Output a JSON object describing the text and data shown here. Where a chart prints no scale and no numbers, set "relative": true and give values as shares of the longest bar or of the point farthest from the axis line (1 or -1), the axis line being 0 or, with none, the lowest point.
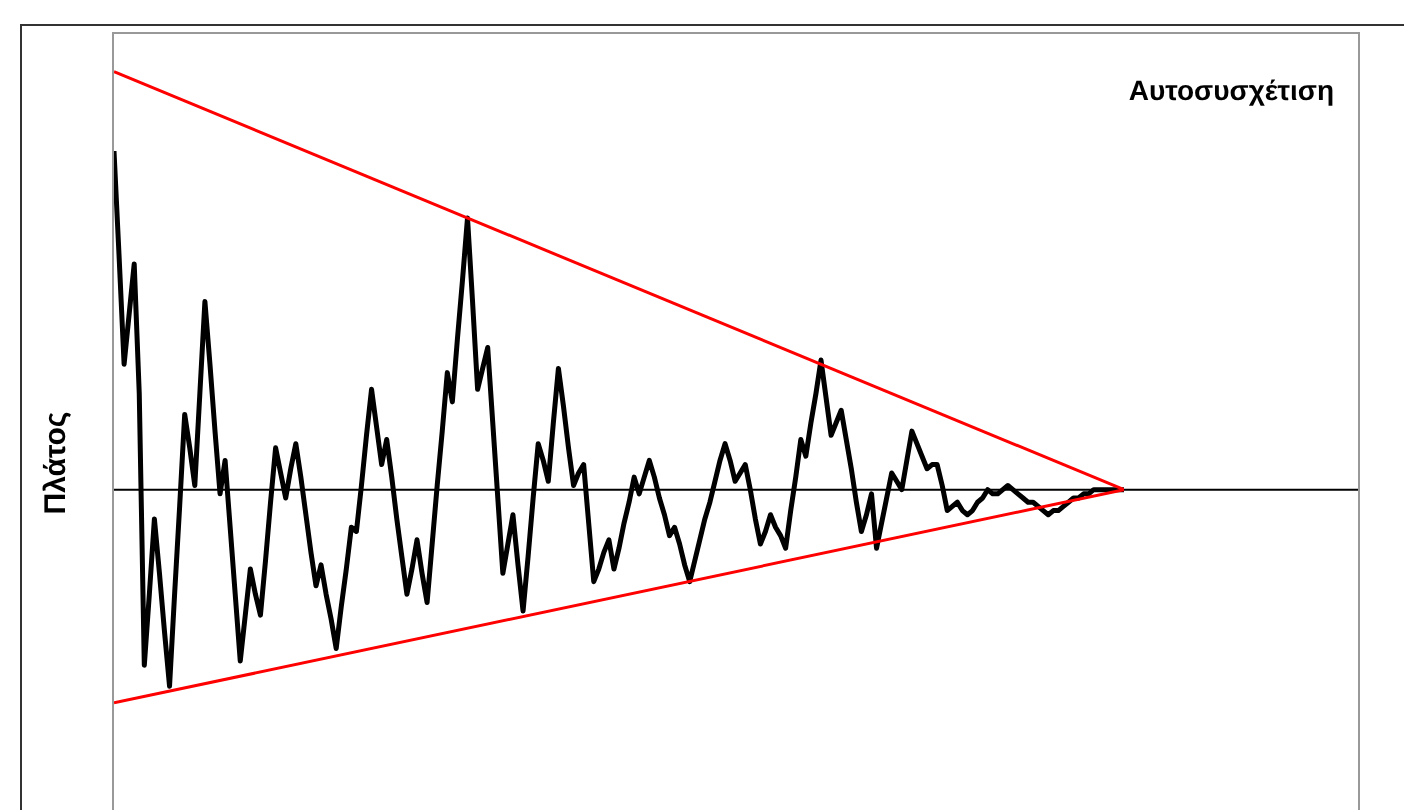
{
  "chart_data": {
    "type": "line",
    "title": "Αυτοσυσχέτιση",
    "ylabel": "Πλάτος",
    "relative": true,
    "marker": "none",
    "categories": [
      null,
      null,
      null,
      null,
      null,
      null,
      null,
      null,
      null,
      null,
      null,
      null,
      null,
      null,
      null,
      null,
      null,
      null,
      null,
      null,
      null,
      null,
      null,
      null,
      null,
      null,
      null,
      null,
      null,
      null,
      null,
      null,
      null,
      null,
      null,
      null,
      null,
      null,
      null,
      null,
      null,
      null,
      null,
      null,
      null,
      null,
      null,
      null,
      null,
      null,
      null,
      null,
      null,
      null,
      null,
      null,
      null,
      null,
      null,
      null,
      null,
      null,
      null,
      null,
      null,
      null,
      null,
      null,
      null,
      null,
      null,
      null,
      null,
      null,
      null,
      null,
      null,
      null,
      null,
      null,
      null,
      null,
      null,
      null,
      null,
      null,
      null,
      null,
      null,
      null,
      null,
      null,
      null,
      null,
      null,
      null,
      null,
      null,
      null,
      null,
      null,
      null,
      null,
      null,
      null,
      null,
      null,
      null,
      null,
      null,
      null,
      null,
      null,
      null,
      null,
      null,
      null,
      null,
      null,
      null,
      null,
      null,
      null,
      null,
      null,
      null,
      null,
      null,
      null,
      null,
      null,
      null,
      null,
      null,
      null,
      null,
      null,
      null,
      null,
      null,
      null,
      null,
      null,
      null,
      null,
      null,
      null,
      null,
      null,
      null,
      null,
      null,
      null,
      null,
      null,
      null,
      null,
      null,
      null,
      null,
      null,
      null,
      null,
      null,
      null,
      null,
      null,
      null,
      null,
      null,
      null,
      null,
      null,
      null,
      null,
      null,
      null,
      null,
      null,
      null,
      null,
      null,
      null,
      null,
      null,
      null,
      null,
      null,
      null,
      null,
      null,
      null,
      null,
      null,
      null,
      null,
      null,
      null,
      null,
      null,
      null
    ],
    "series": [
      {
        "color": "#000000",
        "values": [
          0.81,
          0.56,
          0.3,
          0.42,
          0.54,
          0.23,
          -0.42,
          -0.25,
          -0.07,
          -0.2,
          -0.34,
          -0.47,
          -0.25,
          -0.04,
          0.18,
          0.1,
          0.01,
          0.23,
          0.45,
          0.3,
          0.14,
          -0.01,
          0.07,
          -0.09,
          -0.25,
          -0.41,
          -0.3,
          -0.19,
          -0.25,
          -0.3,
          -0.17,
          -0.03,
          0.1,
          0.04,
          -0.02,
          0.05,
          0.11,
          0.03,
          -0.06,
          -0.15,
          -0.23,
          -0.18,
          -0.25,
          -0.31,
          -0.38,
          -0.28,
          -0.19,
          -0.09,
          -0.1,
          0.01,
          0.13,
          0.24,
          0.15,
          0.06,
          0.12,
          0.03,
          -0.07,
          -0.16,
          -0.25,
          -0.19,
          -0.12,
          -0.2,
          -0.27,
          -0.13,
          0.01,
          0.14,
          0.28,
          0.21,
          0.36,
          0.5,
          0.65,
          0.45,
          0.24,
          0.29,
          0.34,
          0.16,
          -0.02,
          -0.2,
          -0.13,
          -0.06,
          -0.18,
          -0.29,
          -0.16,
          -0.02,
          0.11,
          0.07,
          0.02,
          0.16,
          0.29,
          0.2,
          0.1,
          0.01,
          0.04,
          0.06,
          -0.08,
          -0.22,
          -0.19,
          -0.15,
          -0.12,
          -0.19,
          -0.14,
          -0.08,
          -0.03,
          0.03,
          -0.01,
          0.03,
          0.07,
          0.03,
          -0.02,
          -0.06,
          -0.11,
          -0.09,
          -0.13,
          -0.18,
          -0.22,
          -0.17,
          -0.12,
          -0.07,
          -0.03,
          0.02,
          0.07,
          0.11,
          0.07,
          0.02,
          0.04,
          0.06,
          0,
          -0.07,
          -0.13,
          -0.1,
          -0.06,
          -0.09,
          -0.11,
          -0.14,
          -0.05,
          0.03,
          0.12,
          0.08,
          0.16,
          0.23,
          0.31,
          0.22,
          0.13,
          0.16,
          0.19,
          0.12,
          0.05,
          -0.03,
          -0.1,
          -0.06,
          -0.01,
          -0.14,
          -0.08,
          -0.02,
          0.04,
          0.02,
          0,
          0.07,
          0.14,
          0.11,
          0.08,
          0.05,
          0.06,
          0.06,
          0.01,
          -0.05,
          -0.04,
          -0.03,
          -0.05,
          -0.06,
          -0.05,
          -0.03,
          -0.02,
          0,
          -0.01,
          -0.01,
          0,
          0.01,
          0,
          -0.01,
          -0.02,
          -0.03,
          -0.03,
          -0.04,
          -0.05,
          -0.06,
          -0.05,
          -0.05,
          -0.04,
          -0.03,
          -0.02,
          -0.02,
          -0.01,
          -0.01,
          0,
          0,
          0,
          0,
          0,
          0,
          0
        ]
      },
      {
        "color": "#ff0000",
        "values": [
          1,
          null,
          null,
          null,
          null,
          null,
          null,
          null,
          null,
          null,
          null,
          null,
          null,
          null,
          null,
          null,
          null,
          null,
          null,
          null,
          null,
          null,
          null,
          null,
          null,
          null,
          null,
          null,
          null,
          null,
          null,
          null,
          null,
          null,
          null,
          null,
          null,
          null,
          null,
          null,
          null,
          null,
          null,
          null,
          null,
          null,
          null,
          null,
          null,
          null,
          null,
          null,
          null,
          null,
          null,
          null,
          null,
          null,
          null,
          null,
          null,
          null,
          null,
          null,
          null,
          null,
          null,
          null,
          null,
          null,
          null,
          null,
          null,
          null,
          null,
          null,
          null,
          null,
          null,
          null,
          null,
          null,
          null,
          null,
          null,
          null,
          null,
          null,
          null,
          null,
          null,
          null,
          null,
          null,
          null,
          null,
          null,
          null,
          null,
          null,
          null,
          null,
          null,
          null,
          null,
          null,
          null,
          null,
          null,
          null,
          null,
          null,
          null,
          null,
          null,
          null,
          null,
          null,
          null,
          null,
          null,
          null,
          null,
          null,
          null,
          null,
          null,
          null,
          null,
          null,
          null,
          null,
          null,
          null,
          null,
          null,
          null,
          null,
          null,
          null,
          null,
          null,
          null,
          null,
          null,
          null,
          null,
          null,
          null,
          null,
          null,
          null,
          null,
          null,
          null,
          null,
          null,
          null,
          null,
          null,
          null,
          null,
          null,
          null,
          null,
          null,
          null,
          null,
          null,
          null,
          null,
          null,
          null,
          null,
          null,
          null,
          null,
          null,
          null,
          null,
          null,
          null,
          null,
          null,
          null,
          null,
          null,
          null,
          null,
          null,
          null,
          null,
          null,
          null,
          null,
          null,
          null,
          null,
          null,
          null,
          0
        ]
      },
      {
        "color": "#ff0000",
        "values": [
          -0.51,
          null,
          null,
          null,
          null,
          null,
          null,
          null,
          null,
          null,
          null,
          null,
          null,
          null,
          null,
          null,
          null,
          null,
          null,
          null,
          null,
          null,
          null,
          null,
          null,
          null,
          null,
          null,
          null,
          null,
          null,
          null,
          null,
          null,
          null,
          null,
          null,
          null,
          null,
          null,
          null,
          null,
          null,
          null,
          null,
          null,
          null,
          null,
          null,
          null,
          null,
          null,
          null,
          null,
          null,
          null,
          null,
          null,
          null,
          null,
          null,
          null,
          null,
          null,
          null,
          null,
          null,
          null,
          null,
          null,
          null,
          null,
          null,
          null,
          null,
          null,
          null,
          null,
          null,
          null,
          null,
          null,
          null,
          null,
          null,
          null,
          null,
          null,
          null,
          null,
          null,
          null,
          null,
          null,
          null,
          null,
          null,
          null,
          null,
          null,
          null,
          null,
          null,
          null,
          null,
          null,
          null,
          null,
          null,
          null,
          null,
          null,
          null,
          null,
          null,
          null,
          null,
          null,
          null,
          null,
          null,
          null,
          null,
          null,
          null,
          null,
          null,
          null,
          null,
          null,
          null,
          null,
          null,
          null,
          null,
          null,
          null,
          null,
          null,
          null,
          null,
          null,
          null,
          null,
          null,
          null,
          null,
          null,
          null,
          null,
          null,
          null,
          null,
          null,
          null,
          null,
          null,
          null,
          null,
          null,
          null,
          null,
          null,
          null,
          null,
          null,
          null,
          null,
          null,
          null,
          null,
          null,
          null,
          null,
          null,
          null,
          null,
          null,
          null,
          null,
          null,
          null,
          null,
          null,
          null,
          null,
          null,
          null,
          null,
          null,
          null,
          null,
          null,
          null,
          null,
          null,
          null,
          null,
          null,
          null,
          0
        ]
      }
    ]
  }
}
